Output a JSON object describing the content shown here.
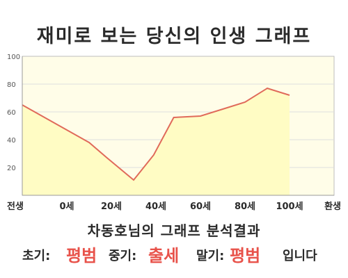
{
  "title": "재미로 보는 당신의 인생 그래프",
  "subtitle": "차동호님의 그래프 분석결과",
  "result": {
    "early_label": "초기:",
    "early_value": "평범",
    "middle_label": "중기:",
    "middle_value": "출세",
    "late_label": "말기:",
    "late_value": "평범",
    "ending": "입니다"
  },
  "colors": {
    "line": "#e06a5a",
    "fill": "#fffcc4",
    "plot_bg": "#fffde8",
    "grid": "#dedede",
    "accent": "#e8524a"
  },
  "chart_data": {
    "type": "area",
    "title": "재미로 보는 당신의 인생 그래프",
    "xlabel": "",
    "ylabel": "",
    "categories": [
      "전생",
      "0세",
      "20세",
      "40세",
      "60세",
      "80세",
      "100세",
      "환생"
    ],
    "ylim": [
      0,
      100
    ],
    "y_ticks": [
      20,
      40,
      60,
      80,
      100
    ],
    "grid": true,
    "series": [
      {
        "x": [
          0,
          0.5,
          1,
          1.5,
          1.9,
          2.2,
          2.5,
          2.95,
          3.4,
          3.7,
          4.0,
          4.5,
          5.0,
          5.5,
          6.0
        ],
        "values": [
          65,
          56,
          47,
          38,
          27,
          19,
          11,
          29,
          56,
          56.5,
          57,
          62,
          67,
          77,
          72
        ]
      }
    ]
  }
}
